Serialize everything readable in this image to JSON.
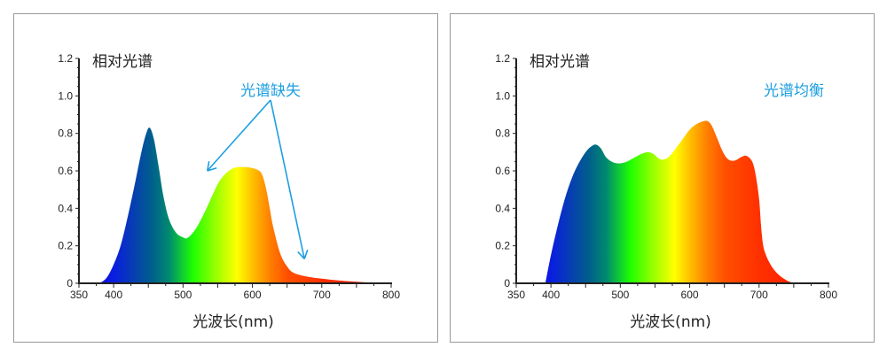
{
  "chart_data": [
    {
      "type": "area",
      "title": "相对光谱",
      "xlabel": "光波长(nm)",
      "ylabel": "",
      "xlim": [
        350,
        800
      ],
      "ylim": [
        0,
        1.2
      ],
      "xticks": [
        "350",
        "400",
        "500",
        "600",
        "700",
        "800"
      ],
      "yticks": [
        "0",
        "0.2",
        "0.4",
        "0.6",
        "0.8",
        "1.0",
        "1.2"
      ],
      "grid": false,
      "annotation": {
        "text": "光谱缺失",
        "color": "#1e9fe0",
        "arrows_to": [
          [
            535,
            0.6
          ],
          [
            675,
            0.13
          ]
        ]
      },
      "x": [
        380,
        390,
        400,
        410,
        420,
        430,
        440,
        447,
        452,
        458,
        465,
        472,
        480,
        490,
        500,
        505,
        512,
        520,
        530,
        540,
        550,
        560,
        570,
        580,
        590,
        600,
        610,
        615,
        620,
        625,
        630,
        640,
        650,
        660,
        680,
        700,
        725,
        750,
        775,
        800
      ],
      "y": [
        0,
        0.03,
        0.1,
        0.2,
        0.35,
        0.52,
        0.7,
        0.8,
        0.83,
        0.77,
        0.62,
        0.46,
        0.34,
        0.27,
        0.245,
        0.24,
        0.26,
        0.3,
        0.37,
        0.45,
        0.53,
        0.58,
        0.61,
        0.62,
        0.62,
        0.615,
        0.6,
        0.57,
        0.5,
        0.4,
        0.3,
        0.16,
        0.09,
        0.055,
        0.035,
        0.025,
        0.015,
        0.008,
        0.003,
        0
      ]
    },
    {
      "type": "area",
      "title": "相对光谱",
      "xlabel": "光波长(nm)",
      "ylabel": "",
      "xlim": [
        350,
        800
      ],
      "ylim": [
        0,
        1.2
      ],
      "xticks": [
        "350",
        "400",
        "500",
        "600",
        "700",
        "800"
      ],
      "yticks": [
        "0",
        "0.2",
        "0.4",
        "0.6",
        "0.8",
        "1.0",
        "1.2"
      ],
      "grid": false,
      "annotation": {
        "text": "光谱均衡",
        "color": "#1e9fe0"
      },
      "x": [
        392,
        400,
        410,
        420,
        430,
        440,
        450,
        458,
        465,
        472,
        480,
        490,
        500,
        510,
        520,
        530,
        540,
        548,
        556,
        562,
        570,
        580,
        590,
        600,
        610,
        620,
        626,
        632,
        640,
        648,
        656,
        665,
        675,
        682,
        690,
        695,
        700,
        703,
        706,
        710,
        715,
        722,
        730,
        740,
        750
      ],
      "y": [
        0,
        0.15,
        0.31,
        0.45,
        0.56,
        0.64,
        0.7,
        0.73,
        0.74,
        0.72,
        0.67,
        0.645,
        0.64,
        0.65,
        0.67,
        0.69,
        0.7,
        0.69,
        0.665,
        0.66,
        0.675,
        0.72,
        0.77,
        0.82,
        0.85,
        0.865,
        0.865,
        0.84,
        0.77,
        0.7,
        0.66,
        0.655,
        0.675,
        0.68,
        0.65,
        0.58,
        0.45,
        0.3,
        0.2,
        0.15,
        0.11,
        0.07,
        0.04,
        0.015,
        0
      ]
    }
  ],
  "colors": {
    "annotation": "#1e9fe0",
    "axis": "#222222",
    "panel_border": "#999999"
  }
}
